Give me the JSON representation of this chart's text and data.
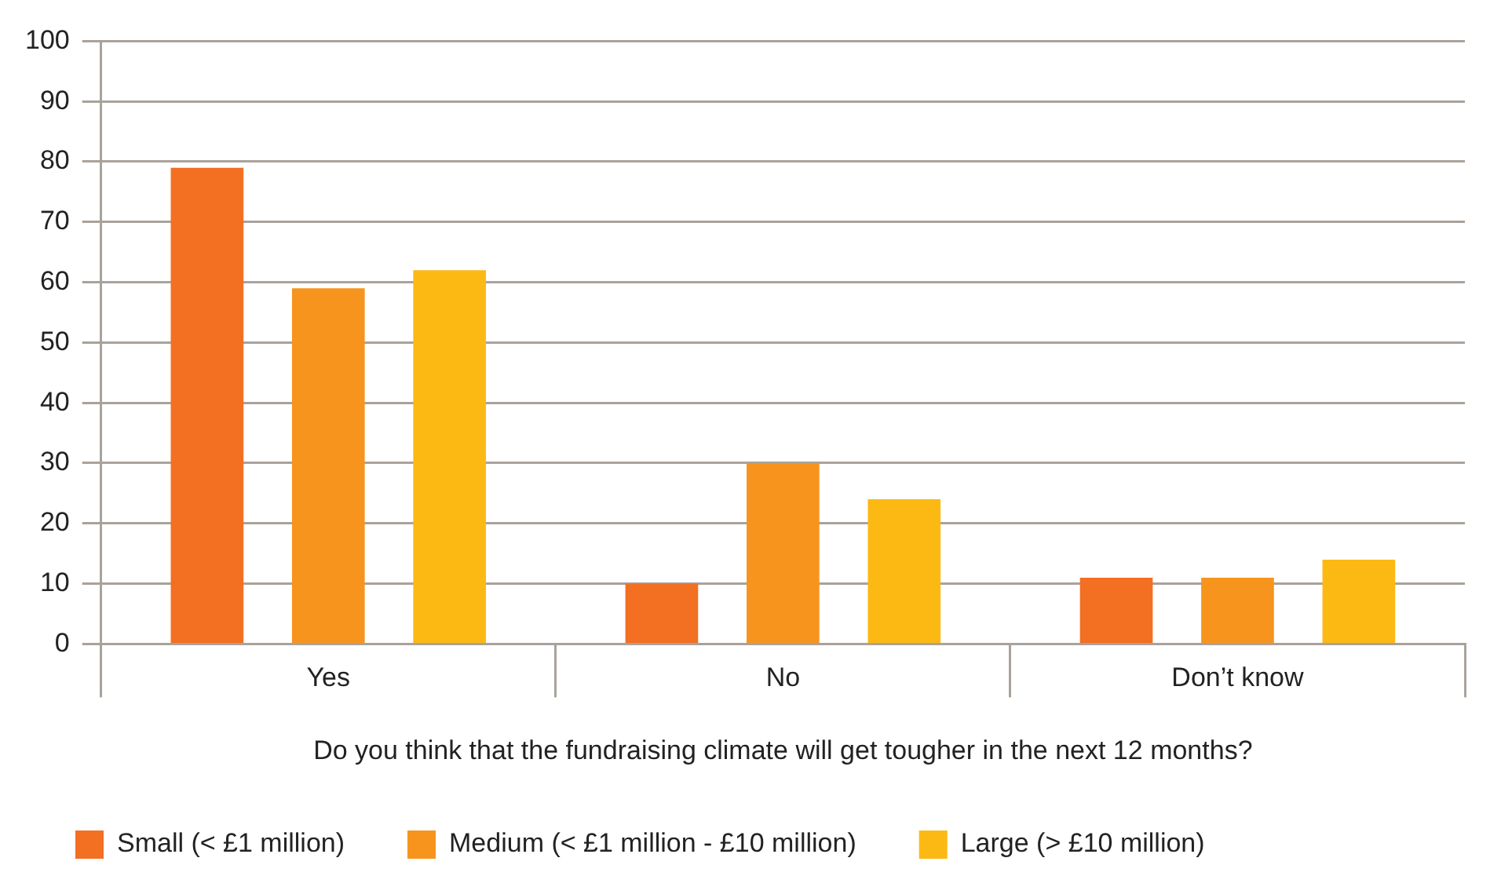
{
  "chart_data": {
    "type": "bar",
    "xlabel": "Do you think that the fundraising climate will get tougher in the next 12 months?",
    "categories": [
      "Yes",
      "No",
      "Don’t know"
    ],
    "series": [
      {
        "name": "Small (< £1 million)",
        "color": "#f36f21",
        "values": [
          79,
          10,
          11
        ]
      },
      {
        "name": "Medium (< £1 million - £10 million)",
        "color": "#f7941d",
        "values": [
          59,
          30,
          11
        ]
      },
      {
        "name": "Large (> £10 million)",
        "color": "#fdb913",
        "values": [
          62,
          24,
          14
        ]
      }
    ],
    "ylim": [
      0,
      100
    ],
    "yticks": [
      0,
      10,
      20,
      30,
      40,
      50,
      60,
      70,
      80,
      90,
      100
    ],
    "grid": "y",
    "legend": "bottom"
  }
}
